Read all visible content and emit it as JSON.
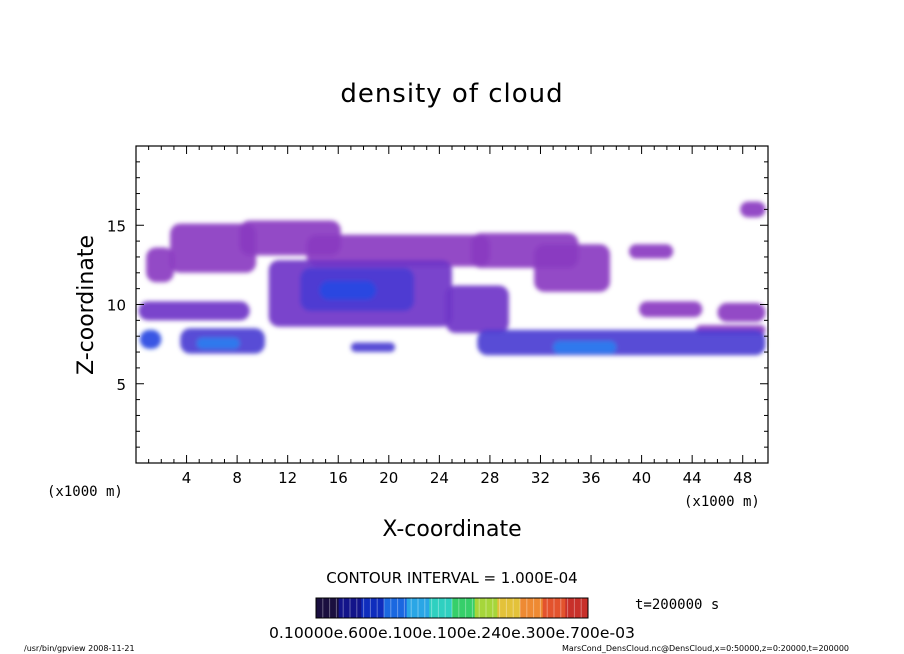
{
  "chart_data": {
    "type": "heatmap",
    "title": "density of cloud",
    "xlabel": "X-coordinate",
    "ylabel": "Z-coordinate",
    "x_unit_left": "(x1000 m)",
    "x_unit_right": "(x1000 m)",
    "xlim": [
      0,
      50
    ],
    "ylim": [
      0,
      20
    ],
    "x_ticks": [
      4,
      8,
      12,
      16,
      20,
      24,
      28,
      32,
      36,
      40,
      44,
      48
    ],
    "y_ticks": [
      5,
      10,
      15
    ],
    "contour_interval": "CONTOUR INTERVAL = 1.000E-04",
    "time_label": "t=200000 s",
    "colorbar_tick_text": "0.10000e.600e.100e.100e.240e.300e.700e-03",
    "colorbar_colors": [
      "#1a0f3f",
      "#13148a",
      "#0f2dbd",
      "#1b68e0",
      "#2aa6e6",
      "#2fd0c0",
      "#36cf6a",
      "#a6d63b",
      "#e3c23a",
      "#ee8a33",
      "#e3532d",
      "#c8302a"
    ],
    "cloud_color_levels": [
      "#8a3bc1",
      "#6f35c8",
      "#4b3cd3",
      "#2748e2",
      "#2b7ef0"
    ],
    "cloud_layers": [
      {
        "x": [
          0.3,
          2.0
        ],
        "z": [
          7.2,
          8.4
        ],
        "level": 3
      },
      {
        "x": [
          3.5,
          10.2
        ],
        "z": [
          6.9,
          8.5
        ],
        "level": 2
      },
      {
        "x": [
          4.8,
          8.2
        ],
        "z": [
          7.2,
          7.9
        ],
        "level": 4
      },
      {
        "x": [
          0.2,
          9.0
        ],
        "z": [
          9.0,
          10.2
        ],
        "level": 1
      },
      {
        "x": [
          0.8,
          3.0
        ],
        "z": [
          11.4,
          13.6
        ],
        "level": 0
      },
      {
        "x": [
          2.7,
          9.5
        ],
        "z": [
          12.0,
          15.1
        ],
        "level": 0
      },
      {
        "x": [
          8.2,
          16.2
        ],
        "z": [
          13.1,
          15.3
        ],
        "level": 0
      },
      {
        "x": [
          13.5,
          28.0
        ],
        "z": [
          12.4,
          14.4
        ],
        "level": 0
      },
      {
        "x": [
          10.5,
          25.0
        ],
        "z": [
          8.6,
          12.8
        ],
        "level": 1
      },
      {
        "x": [
          13.0,
          22.0
        ],
        "z": [
          9.6,
          12.3
        ],
        "level": 2
      },
      {
        "x": [
          14.5,
          19.0
        ],
        "z": [
          10.3,
          11.5
        ],
        "level": 3
      },
      {
        "x": [
          17.0,
          20.5
        ],
        "z": [
          7.0,
          7.6
        ],
        "level": 2
      },
      {
        "x": [
          24.5,
          29.5
        ],
        "z": [
          8.2,
          11.2
        ],
        "level": 1
      },
      {
        "x": [
          26.5,
          35.0
        ],
        "z": [
          12.3,
          14.5
        ],
        "level": 0
      },
      {
        "x": [
          31.5,
          37.5
        ],
        "z": [
          10.8,
          13.8
        ],
        "level": 0
      },
      {
        "x": [
          27.0,
          49.8
        ],
        "z": [
          6.8,
          8.4
        ],
        "level": 2
      },
      {
        "x": [
          33.0,
          38.0
        ],
        "z": [
          6.9,
          7.7
        ],
        "level": 4
      },
      {
        "x": [
          39.8,
          44.8
        ],
        "z": [
          9.2,
          10.2
        ],
        "level": 0
      },
      {
        "x": [
          44.3,
          49.8
        ],
        "z": [
          8.1,
          8.7
        ],
        "level": 0
      },
      {
        "x": [
          46.0,
          49.8
        ],
        "z": [
          8.9,
          10.1
        ],
        "level": 0
      },
      {
        "x": [
          47.8,
          49.8
        ],
        "z": [
          15.5,
          16.5
        ],
        "level": 0
      },
      {
        "x": [
          39.0,
          42.5
        ],
        "z": [
          12.9,
          13.8
        ],
        "level": 0
      }
    ]
  },
  "footer": {
    "left": "/usr/bin/gpview  2008-11-21",
    "right": "MarsCond_DensCloud.nc@DensCloud,x=0:50000,z=0:20000,t=200000"
  }
}
